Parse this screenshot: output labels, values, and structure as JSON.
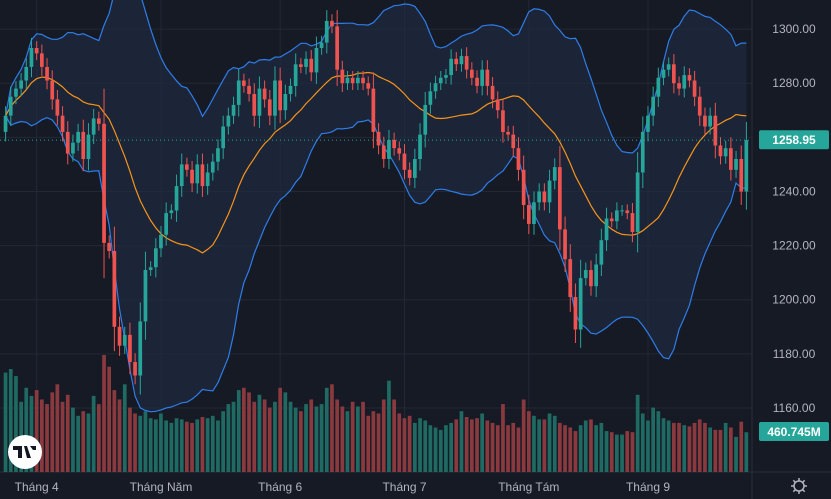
{
  "chart_data": {
    "type": "candlestick",
    "title": "",
    "xlabel": "",
    "ylabel": "",
    "ylim": [
      1160,
      1310
    ],
    "y_ticks": [
      1300,
      1280,
      1260,
      1240,
      1220,
      1200,
      1180,
      1160
    ],
    "y_tick_labels": [
      "1300.00",
      "1280.00",
      "1260.00",
      "1240.00",
      "1220.00",
      "1200.00",
      "1180.00",
      "1160.00"
    ],
    "x_tick_labels": [
      "Tháng 4",
      "Tháng Năm",
      "Tháng 6",
      "Tháng 7",
      "Tháng Tám",
      "Tháng 9"
    ],
    "x_tick_index": [
      6,
      30,
      53,
      77,
      101,
      124
    ],
    "last_price": 1258.95,
    "last_price_label": "1258.95",
    "last_volume_label": "460.745M",
    "grid": true,
    "legend": "none",
    "colors": {
      "up": "#26a69a",
      "down": "#ef5350",
      "up_volume": "#1f6b63",
      "down_volume": "#8a3a3f",
      "sma": "#f7931a",
      "bands": "#2e7de9",
      "band_fill": "#1e2b3e",
      "background": "#161a25"
    },
    "close": [
      1268.0,
      1275.0,
      1278.0,
      1281.0,
      1286.0,
      1293.0,
      1291.0,
      1286.0,
      1281.0,
      1274.0,
      1268.0,
      1262.0,
      1254.0,
      1258.0,
      1262.0,
      1252.0,
      1261.0,
      1267.0,
      1265.0,
      1221.0,
      1218.0,
      1190.0,
      1183.0,
      1187.0,
      1177.0,
      1172.0,
      1192.0,
      1211.0,
      1212.0,
      1219.0,
      1224.0,
      1232.0,
      1233.0,
      1242.0,
      1250.0,
      1248.0,
      1243.0,
      1250.0,
      1242.0,
      1247.0,
      1251.0,
      1256.0,
      1264.0,
      1268.0,
      1272.0,
      1281.0,
      1279.0,
      1276.0,
      1268.0,
      1278.0,
      1274.0,
      1268.0,
      1281.0,
      1270.0,
      1276.0,
      1279.0,
      1287.0,
      1286.0,
      1289.0,
      1284.0,
      1293.0,
      1295.0,
      1303.0,
      1301.0,
      1285.0,
      1280.0,
      1282.0,
      1280.0,
      1282.0,
      1280.0,
      1278.0,
      1262.0,
      1257.0,
      1252.0,
      1259.0,
      1256.0,
      1254.0,
      1248.0,
      1245.0,
      1252.0,
      1261.0,
      1272.0,
      1277.0,
      1280.0,
      1282.0,
      1283.0,
      1289.0,
      1287.0,
      1290.0,
      1285.0,
      1282.0,
      1279.0,
      1285.0,
      1279.0,
      1274.0,
      1270.0,
      1262.0,
      1261.0,
      1256.0,
      1248.0,
      1235.0,
      1228.0,
      1236.0,
      1240.0,
      1236.0,
      1244.0,
      1249.0,
      1226.0,
      1215.0,
      1201.0,
      1189.0,
      1208.0,
      1211.0,
      1205.0,
      1213.0,
      1222.0,
      1230.0,
      1229.0,
      1233.0,
      1233.0,
      1232.0,
      1225.0,
      1247.0,
      1262.0,
      1268.0,
      1275.0,
      1282.0,
      1285.0,
      1287.0,
      1280.0,
      1278.0,
      1283.0,
      1281.0,
      1275.0,
      1268.0,
      1264.0,
      1268.0,
      1257.0,
      1253.0,
      1256.0,
      1248.0,
      1252.0,
      1240.0,
      1258.95
    ],
    "open": [
      1262.0,
      1268.0,
      1275.0,
      1278.0,
      1281.0,
      1286.0,
      1293.0,
      1291.0,
      1286.0,
      1281.0,
      1274.0,
      1268.0,
      1262.0,
      1254.0,
      1258.0,
      1262.0,
      1252.0,
      1261.0,
      1267.0,
      1265.0,
      1221.0,
      1218.0,
      1190.0,
      1183.0,
      1187.0,
      1177.0,
      1172.0,
      1192.0,
      1211.0,
      1212.0,
      1219.0,
      1224.0,
      1232.0,
      1233.0,
      1242.0,
      1250.0,
      1248.0,
      1243.0,
      1250.0,
      1242.0,
      1247.0,
      1251.0,
      1256.0,
      1264.0,
      1268.0,
      1272.0,
      1281.0,
      1279.0,
      1276.0,
      1268.0,
      1278.0,
      1274.0,
      1268.0,
      1281.0,
      1270.0,
      1276.0,
      1279.0,
      1287.0,
      1286.0,
      1289.0,
      1284.0,
      1293.0,
      1295.0,
      1303.0,
      1301.0,
      1285.0,
      1280.0,
      1282.0,
      1280.0,
      1282.0,
      1280.0,
      1278.0,
      1262.0,
      1257.0,
      1252.0,
      1259.0,
      1256.0,
      1254.0,
      1248.0,
      1245.0,
      1252.0,
      1261.0,
      1272.0,
      1277.0,
      1280.0,
      1282.0,
      1283.0,
      1289.0,
      1287.0,
      1290.0,
      1285.0,
      1282.0,
      1279.0,
      1285.0,
      1279.0,
      1274.0,
      1270.0,
      1262.0,
      1261.0,
      1256.0,
      1248.0,
      1235.0,
      1228.0,
      1236.0,
      1240.0,
      1236.0,
      1244.0,
      1249.0,
      1226.0,
      1215.0,
      1201.0,
      1189.0,
      1208.0,
      1211.0,
      1205.0,
      1213.0,
      1222.0,
      1230.0,
      1229.0,
      1233.0,
      1233.0,
      1232.0,
      1225.0,
      1247.0,
      1262.0,
      1268.0,
      1275.0,
      1282.0,
      1285.0,
      1287.0,
      1280.0,
      1278.0,
      1283.0,
      1281.0,
      1275.0,
      1268.0,
      1264.0,
      1268.0,
      1257.0,
      1253.0,
      1256.0,
      1248.0,
      1252.0,
      1240.0
    ],
    "volume_relative": [
      0.85,
      0.88,
      0.82,
      0.6,
      0.72,
      0.65,
      0.7,
      0.62,
      0.58,
      0.68,
      0.75,
      0.6,
      0.66,
      0.55,
      0.48,
      0.52,
      0.5,
      0.65,
      0.58,
      1.0,
      0.9,
      0.7,
      0.62,
      0.75,
      0.55,
      0.5,
      0.48,
      0.52,
      0.46,
      0.45,
      0.5,
      0.44,
      0.42,
      0.46,
      0.45,
      0.43,
      0.42,
      0.45,
      0.47,
      0.46,
      0.48,
      0.44,
      0.52,
      0.58,
      0.6,
      0.7,
      0.72,
      0.68,
      0.6,
      0.66,
      0.62,
      0.55,
      0.6,
      0.72,
      0.68,
      0.6,
      0.55,
      0.52,
      0.58,
      0.62,
      0.56,
      0.58,
      0.72,
      0.75,
      0.62,
      0.56,
      0.52,
      0.6,
      0.56,
      0.6,
      0.48,
      0.52,
      0.5,
      0.62,
      0.78,
      0.62,
      0.5,
      0.46,
      0.48,
      0.42,
      0.46,
      0.44,
      0.4,
      0.38,
      0.36,
      0.4,
      0.42,
      0.45,
      0.52,
      0.47,
      0.45,
      0.46,
      0.5,
      0.44,
      0.42,
      0.4,
      0.58,
      0.4,
      0.42,
      0.38,
      0.62,
      0.52,
      0.48,
      0.45,
      0.45,
      0.5,
      0.48,
      0.42,
      0.4,
      0.38,
      0.35,
      0.4,
      0.44,
      0.45,
      0.4,
      0.42,
      0.35,
      0.34,
      0.32,
      0.32,
      0.35,
      0.34,
      0.66,
      0.5,
      0.44,
      0.55,
      0.52,
      0.46,
      0.44,
      0.42,
      0.42,
      0.4,
      0.39,
      0.42,
      0.45,
      0.42,
      0.38,
      0.36,
      0.36,
      0.42,
      0.38,
      0.3,
      0.43,
      0.34
    ],
    "sma_period": 20,
    "band_stddev": 2
  }
}
